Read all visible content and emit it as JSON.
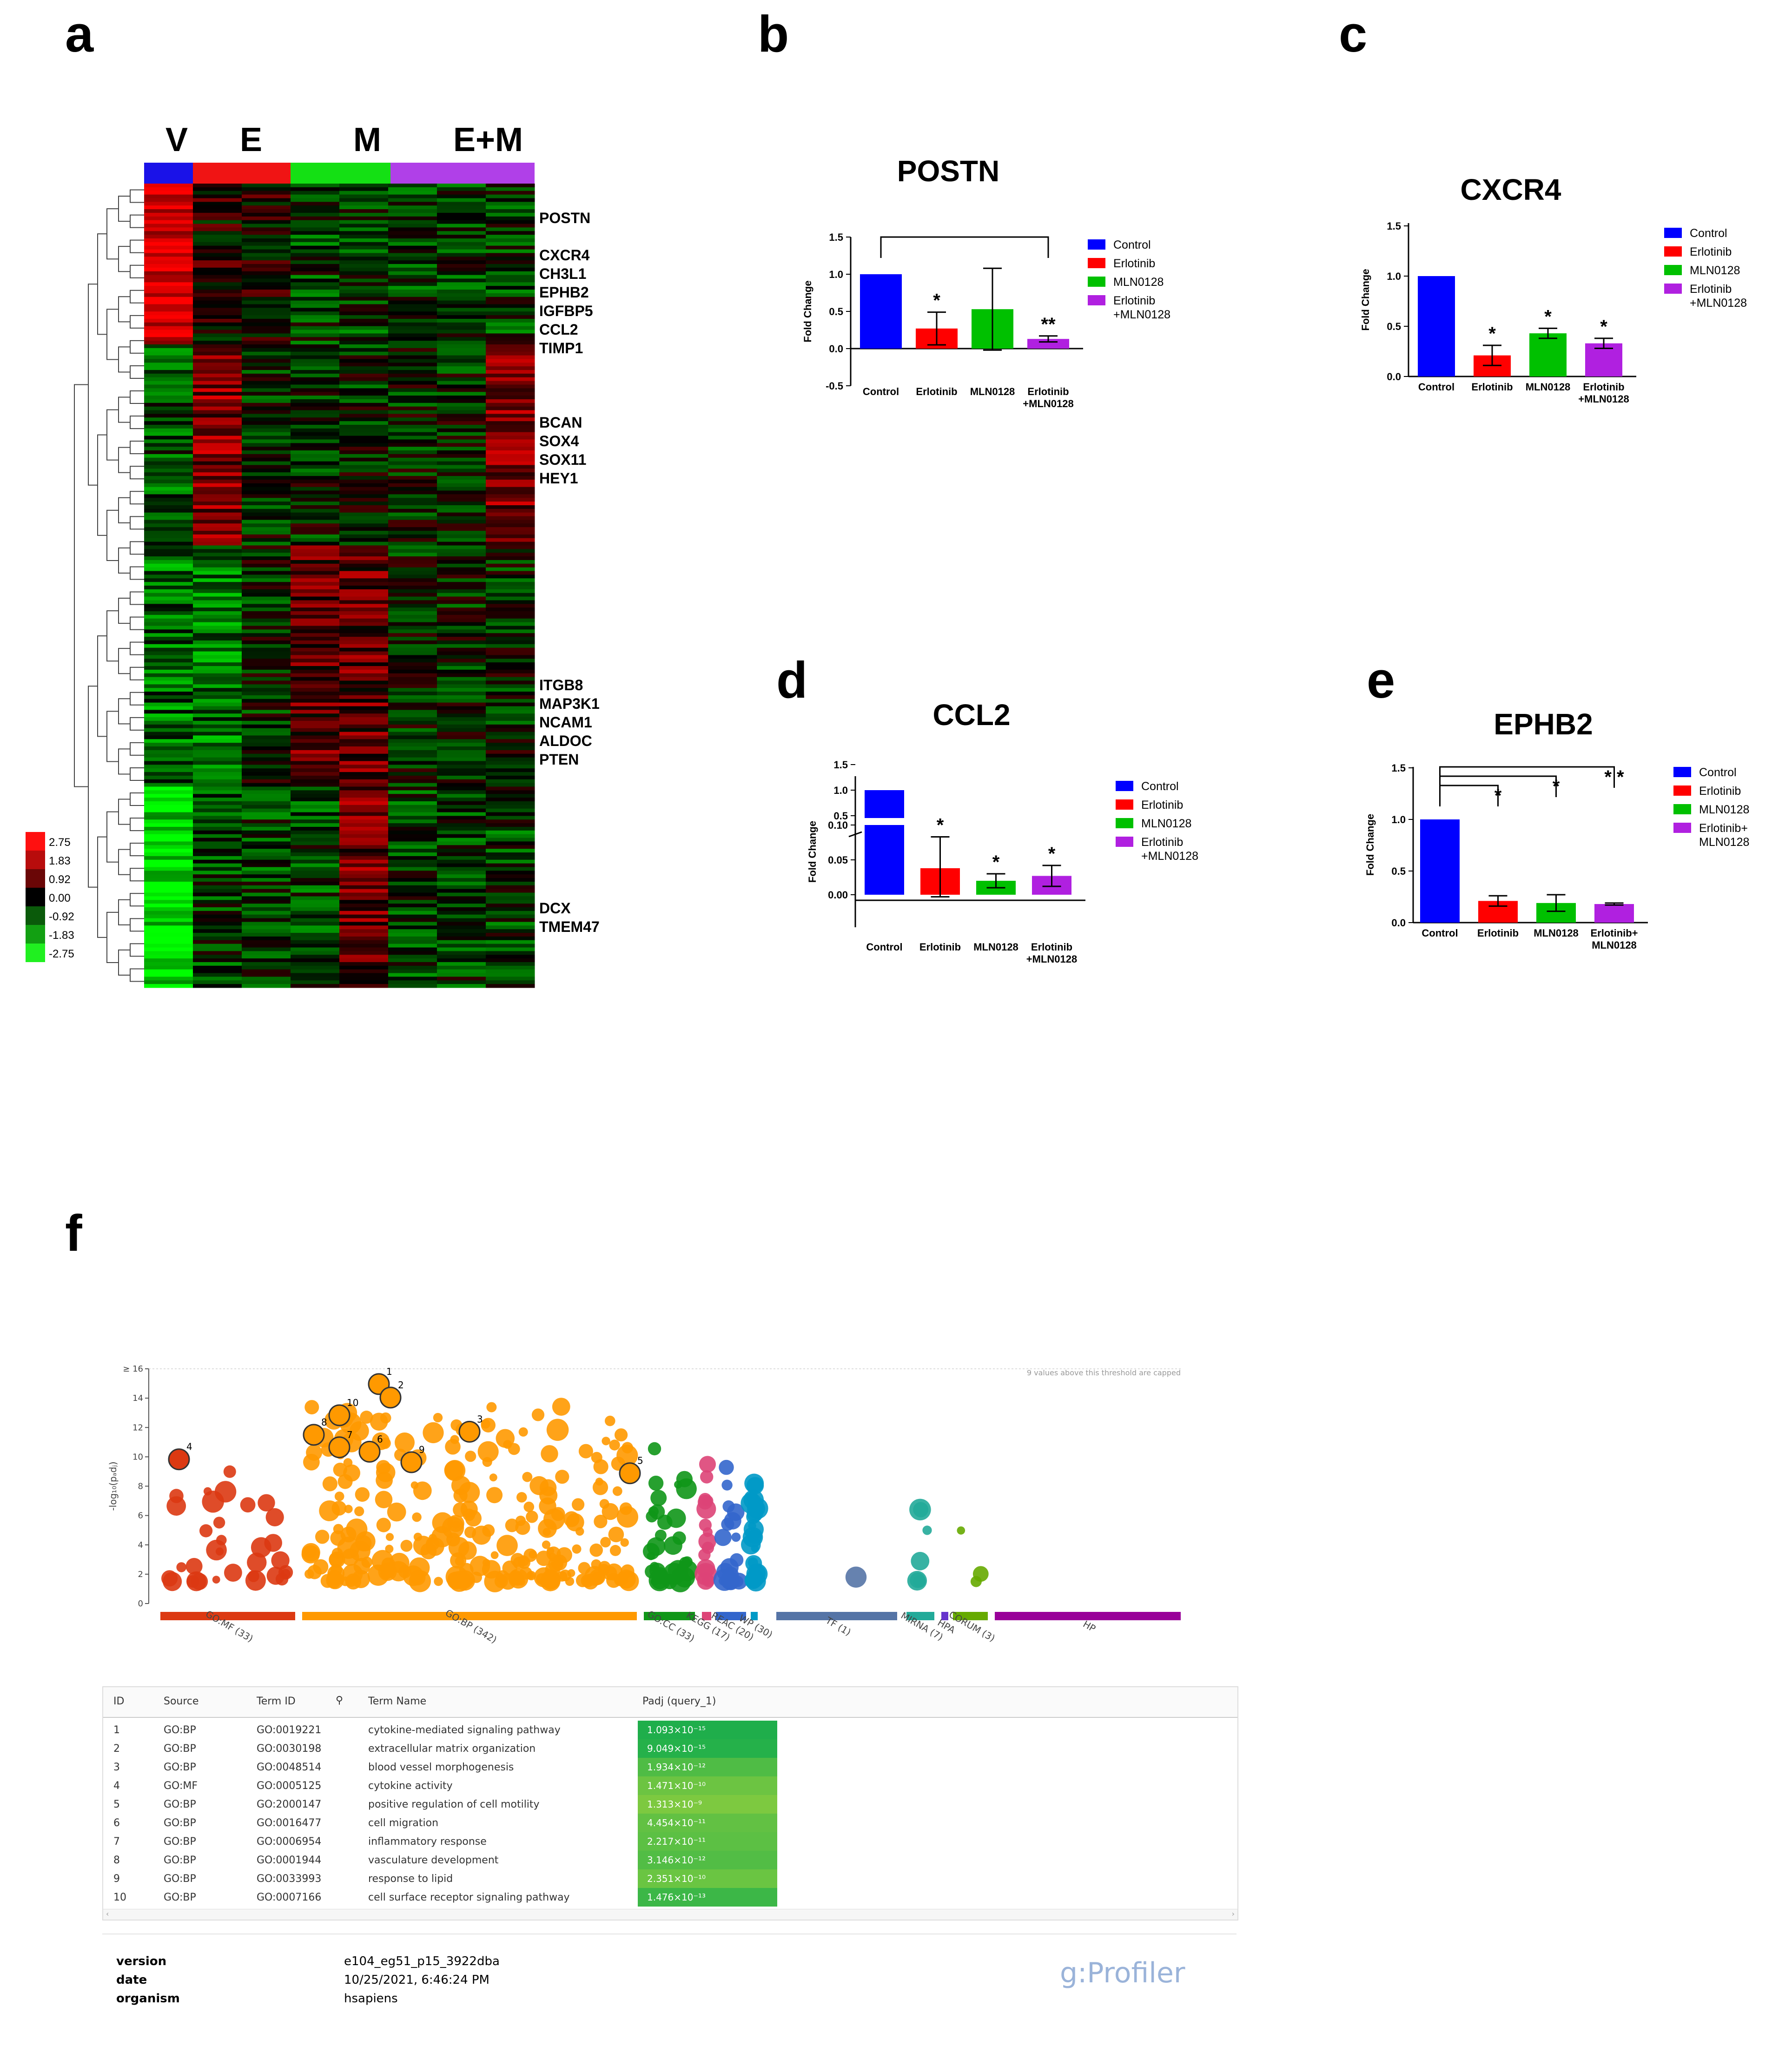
{
  "panel_labels": {
    "a": "a",
    "b": "b",
    "c": "c",
    "d": "d",
    "e": "e",
    "f": "f"
  },
  "heatmap": {
    "group_labels": [
      "V",
      "E",
      "M",
      "E+M"
    ],
    "group_colors": [
      "#1a12e8",
      "#f01414",
      "#14e014",
      "#b040e8"
    ],
    "genes": [
      "POSTN",
      "CXCR4",
      "CH3L1",
      "EPHB2",
      "IGFBP5",
      "CCL2",
      "TIMP1",
      "BCAN",
      "SOX4",
      "SOX11",
      "HEY1",
      "ITGB8",
      "MAP3K1",
      "NCAM1",
      "ALDOC",
      "PTEN",
      "DCX",
      "TMEM47"
    ],
    "scale_labels": [
      "2.75",
      "1.83",
      "0.92",
      "0.00",
      "-0.92",
      "-1.83",
      "-2.75"
    ],
    "scale_colors": [
      "#ff1010",
      "#b80c0c",
      "#6a0606",
      "#000000",
      "#0a5a0a",
      "#12a012",
      "#20f020"
    ]
  },
  "chart_data": [
    {
      "type": "bar",
      "title": "POSTN",
      "ylabel": "Fold Change",
      "ylim": [
        -0.5,
        1.5
      ],
      "yticks": [
        "1.5",
        "1.0",
        "0.5",
        "0.0",
        "-0.5"
      ],
      "categories": [
        "Control",
        "Erlotinib",
        "MLN0128",
        "Erlotinib\n+MLN0128"
      ],
      "values": [
        1.0,
        0.27,
        0.53,
        0.13
      ],
      "errors": [
        0,
        0.22,
        0.55,
        0.04
      ],
      "colors": [
        "#0000ff",
        "#ff0000",
        "#00c000",
        "#b020e0"
      ],
      "significance": [
        "",
        "*",
        "",
        "**"
      ],
      "legend": [
        "Control",
        "Erlotinib",
        "MLN0128",
        "Erlotinib\n+MLN0128"
      ]
    },
    {
      "type": "bar",
      "title": "CXCR4",
      "ylabel": "Fold Change",
      "ylim": [
        0,
        1.5
      ],
      "yticks": [
        "1.5",
        "1.0",
        "0.5",
        "0.0"
      ],
      "categories": [
        "Control",
        "Erlotinib",
        "MLN0128",
        "Erlotinib\n+MLN0128"
      ],
      "values": [
        1.0,
        0.21,
        0.43,
        0.33
      ],
      "errors": [
        0,
        0.1,
        0.05,
        0.05
      ],
      "colors": [
        "#0000ff",
        "#ff0000",
        "#00c000",
        "#b020e0"
      ],
      "significance": [
        "",
        "*",
        "*",
        "*"
      ],
      "legend": [
        "Control",
        "Erlotinib",
        "MLN0128",
        "Erlotinib\n+MLN0128"
      ]
    },
    {
      "type": "bar",
      "title": "CCL2",
      "ylabel": "Fold Change",
      "ylim": [
        0,
        1.5
      ],
      "yticks": [
        "1.5",
        "1.0",
        "0.5",
        "0.10",
        "0.05",
        "0.00"
      ],
      "categories": [
        "Control",
        "Erlotinib",
        "MLN0128",
        "Erlotinib\n+MLN0128"
      ],
      "values": [
        1.0,
        0.038,
        0.02,
        0.027
      ],
      "errors": [
        0,
        0.045,
        0.01,
        0.015
      ],
      "colors": [
        "#0000ff",
        "#ff0000",
        "#00c000",
        "#b020e0"
      ],
      "significance": [
        "",
        "*",
        "*",
        "*"
      ],
      "legend": [
        "Control",
        "Erlotinib",
        "MLN0128",
        "Erlotinib\n+MLN0128"
      ]
    },
    {
      "type": "bar",
      "title": "EPHB2",
      "ylabel": "Fold Change",
      "ylim": [
        0,
        1.5
      ],
      "yticks": [
        "1.5",
        "1.0",
        "0.5",
        "0.0"
      ],
      "categories": [
        "Control",
        "Erlotinib",
        "MLN0128",
        "Erlotinib+\nMLN0128"
      ],
      "values": [
        1.0,
        0.21,
        0.19,
        0.18
      ],
      "errors": [
        0,
        0.05,
        0.08,
        0.01
      ],
      "colors": [
        "#0000ff",
        "#ff0000",
        "#00c000",
        "#b020e0"
      ],
      "significance": [
        "",
        "*",
        "*",
        "* *"
      ],
      "legend": [
        "Control",
        "Erlotinib",
        "MLN0128",
        "Erlotinib+\nMLN0128"
      ]
    },
    {
      "type": "scatter",
      "ylabel": "-log₁₀(pₐdⱼ)",
      "ylim": [
        0,
        16
      ],
      "yticks": [
        "≥ 16",
        "14",
        "12",
        "10",
        "8",
        "6",
        "4",
        "2",
        "0"
      ],
      "cap_note": "9 values above this threshold are capped",
      "sources": [
        {
          "name": "GO:MF (33)",
          "color": "#dc3912",
          "count": 33
        },
        {
          "name": "GO:BP (342)",
          "color": "#ff9900",
          "count": 342
        },
        {
          "name": "GO:CC (33)",
          "color": "#109618",
          "count": 33
        },
        {
          "name": "KEGG (17)",
          "color": "#dd4477",
          "count": 17
        },
        {
          "name": "REAC (20)",
          "color": "#3366cc",
          "count": 20
        },
        {
          "name": "WP (30)",
          "color": "#0099c6",
          "count": 30
        },
        {
          "name": "TF (1)",
          "color": "#5574a6",
          "count": 1
        },
        {
          "name": "MIRNA (7)",
          "color": "#22aa99",
          "count": 7
        },
        {
          "name": "HPA",
          "color": "#6633cc",
          "count": 0
        },
        {
          "name": "CORUM (3)",
          "color": "#66aa00",
          "count": 3
        },
        {
          "name": "HP",
          "color": "#990099",
          "count": 0
        }
      ],
      "highlighted": [
        {
          "id": "1",
          "source": "GO:BP",
          "y": 14.96
        },
        {
          "id": "2",
          "source": "GO:BP",
          "y": 14.04
        },
        {
          "id": "3",
          "source": "GO:BP",
          "y": 11.71
        },
        {
          "id": "4",
          "source": "GO:MF",
          "y": 9.83
        },
        {
          "id": "5",
          "source": "GO:BP",
          "y": 8.88
        },
        {
          "id": "6",
          "source": "GO:BP",
          "y": 10.35
        },
        {
          "id": "7",
          "source": "GO:BP",
          "y": 10.65
        },
        {
          "id": "8",
          "source": "GO:BP",
          "y": 11.5
        },
        {
          "id": "9",
          "source": "GO:BP",
          "y": 9.63
        },
        {
          "id": "10",
          "source": "GO:BP",
          "y": 12.83
        }
      ]
    }
  ],
  "table": {
    "headers": [
      "ID",
      "Source",
      "Term ID",
      "Term Name",
      "Padj (query_1)"
    ],
    "rows": [
      {
        "id": "1",
        "source": "GO:BP",
        "term_id": "GO:0019221",
        "name": "cytokine-mediated signaling pathway",
        "padj": "1.093×10⁻¹⁵",
        "color": "#1fae4b"
      },
      {
        "id": "2",
        "source": "GO:BP",
        "term_id": "GO:0030198",
        "name": "extracellular matrix organization",
        "padj": "9.049×10⁻¹⁵",
        "color": "#25b14a"
      },
      {
        "id": "3",
        "source": "GO:BP",
        "term_id": "GO:0048514",
        "name": "blood vessel morphogenesis",
        "padj": "1.934×10⁻¹²",
        "color": "#4fbc45"
      },
      {
        "id": "4",
        "source": "GO:MF",
        "term_id": "GO:0005125",
        "name": "cytokine activity",
        "padj": "1.471×10⁻¹⁰",
        "color": "#6cc442"
      },
      {
        "id": "5",
        "source": "GO:BP",
        "term_id": "GO:2000147",
        "name": "positive regulation of cell motility",
        "padj": "1.313×10⁻⁹",
        "color": "#7dc940"
      },
      {
        "id": "6",
        "source": "GO:BP",
        "term_id": "GO:0016477",
        "name": "cell migration",
        "padj": "4.454×10⁻¹¹",
        "color": "#62c143"
      },
      {
        "id": "7",
        "source": "GO:BP",
        "term_id": "GO:0006954",
        "name": "inflammatory response",
        "padj": "2.217×10⁻¹¹",
        "color": "#5cc044"
      },
      {
        "id": "8",
        "source": "GO:BP",
        "term_id": "GO:0001944",
        "name": "vasculature development",
        "padj": "3.146×10⁻¹²",
        "color": "#52bd45"
      },
      {
        "id": "9",
        "source": "GO:BP",
        "term_id": "GO:0033993",
        "name": "response to lipid",
        "padj": "2.351×10⁻¹⁰",
        "color": "#6ac542"
      },
      {
        "id": "10",
        "source": "GO:BP",
        "term_id": "GO:0007166",
        "name": "cell surface receptor signaling pathway",
        "padj": "1.476×10⁻¹³",
        "color": "#3cb747"
      }
    ]
  },
  "meta": {
    "version_label": "version",
    "version": "e104_eg51_p15_3922dba",
    "date_label": "date",
    "date": "10/25/2021, 6:46:24 PM",
    "organism_label": "organism",
    "organism": "hsapiens",
    "brand": "g:Profiler"
  }
}
